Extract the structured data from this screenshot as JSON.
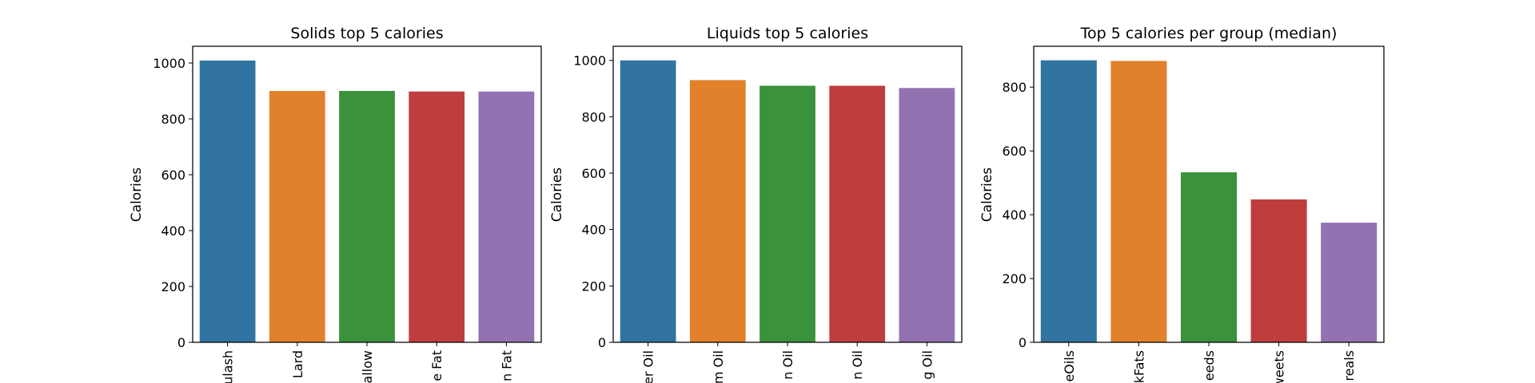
{
  "chart_data": [
    {
      "type": "bar",
      "title": "Solids top 5 calories",
      "xlabel": "",
      "ylabel": "Calories",
      "categories": [
        "ulash",
        "Lard",
        "allow",
        "e Fat",
        "n Fat"
      ],
      "values": [
        1009,
        900,
        900,
        898,
        898
      ],
      "ylim": [
        0,
        1060
      ],
      "yticks": [
        0,
        200,
        400,
        600,
        800,
        1000
      ],
      "colors": [
        "#3274a1",
        "#e1812c",
        "#3a923a",
        "#c03d3e",
        "#9372b2"
      ],
      "grid": false,
      "legend": "none"
    },
    {
      "type": "bar",
      "title": "Liquids top 5 calories",
      "xlabel": "",
      "ylabel": "Calories",
      "categories": [
        "er Oil",
        "m Oil",
        "n Oil",
        "n Oil",
        "g Oil"
      ],
      "values": [
        1000,
        930,
        910,
        910,
        902
      ],
      "ylim": [
        0,
        1050
      ],
      "yticks": [
        0,
        200,
        400,
        600,
        800,
        1000
      ],
      "colors": [
        "#3274a1",
        "#e1812c",
        "#3a923a",
        "#c03d3e",
        "#9372b2"
      ],
      "grid": false,
      "legend": "none"
    },
    {
      "type": "bar",
      "title": "Top 5 calories per group (median)",
      "xlabel": "",
      "ylabel": "Calories",
      "categories": [
        "eOils",
        "kFats",
        "eeds",
        "weets",
        "reals"
      ],
      "values": [
        884,
        882,
        533,
        448,
        375
      ],
      "ylim": [
        0,
        928
      ],
      "yticks": [
        0,
        200,
        400,
        600,
        800
      ],
      "colors": [
        "#3274a1",
        "#e1812c",
        "#3a923a",
        "#c03d3e",
        "#9372b2"
      ],
      "grid": false,
      "legend": "none"
    }
  ]
}
